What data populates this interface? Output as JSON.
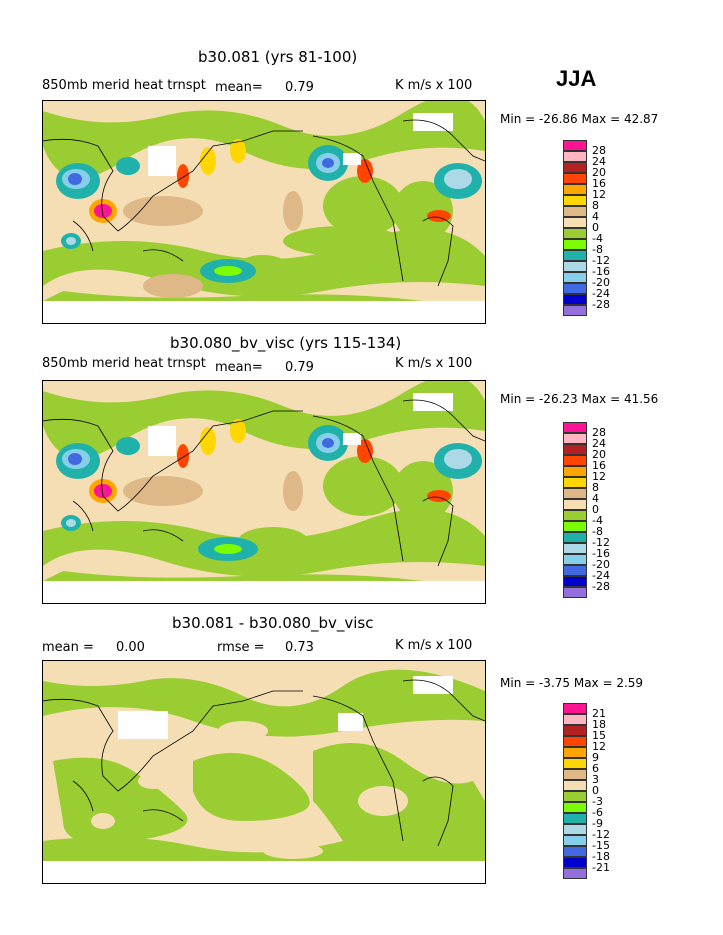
{
  "season": "JJA",
  "panels": [
    {
      "title": "b30.081 (yrs 81-100)",
      "variable": "850mb merid heat trnspt",
      "stat_label": "mean=",
      "stat_value": "0.79",
      "rmse_label": "",
      "rmse_value": "",
      "units": "K m/s x 100",
      "minmax": "Min = -26.86 Max =  42.87",
      "legend_labels": [
        "28",
        "24",
        "20",
        "16",
        "12",
        "8",
        "4",
        "0",
        "-4",
        "-8",
        "-12",
        "-16",
        "-20",
        "-24",
        "-28"
      ],
      "legend_colors": [
        "#ff1493",
        "#ffb6c1",
        "#b22222",
        "#ff4500",
        "#ffa500",
        "#ffd700",
        "#deb887",
        "#f5deb3",
        "#9acd32",
        "#7cfc00",
        "#20b2aa",
        "#add8e6",
        "#87ceeb",
        "#4169e1",
        "#0000cd",
        "#9370db"
      ]
    },
    {
      "title": "b30.080_bv_visc (yrs 115-134)",
      "variable": "850mb merid heat trnspt",
      "stat_label": "mean=",
      "stat_value": "0.79",
      "rmse_label": "",
      "rmse_value": "",
      "units": "K m/s x 100",
      "minmax": "Min = -26.23 Max =  41.56",
      "legend_labels": [
        "28",
        "24",
        "20",
        "16",
        "12",
        "8",
        "4",
        "0",
        "-4",
        "-8",
        "-12",
        "-16",
        "-20",
        "-24",
        "-28"
      ],
      "legend_colors": [
        "#ff1493",
        "#ffb6c1",
        "#b22222",
        "#ff4500",
        "#ffa500",
        "#ffd700",
        "#deb887",
        "#f5deb3",
        "#9acd32",
        "#7cfc00",
        "#20b2aa",
        "#add8e6",
        "#87ceeb",
        "#4169e1",
        "#0000cd",
        "#9370db"
      ]
    },
    {
      "title": "b30.081 - b30.080_bv_visc",
      "variable": "",
      "stat_label": "mean =",
      "stat_value": "0.00",
      "rmse_label": "rmse =",
      "rmse_value": "0.73",
      "units": "K m/s x 100",
      "minmax": "Min =  -3.75 Max =   2.59",
      "legend_labels": [
        "21",
        "18",
        "15",
        "12",
        "9",
        "6",
        "3",
        "0",
        "-3",
        "-6",
        "-9",
        "-12",
        "-15",
        "-18",
        "-21"
      ],
      "legend_colors": [
        "#ff1493",
        "#ffb6c1",
        "#b22222",
        "#ff4500",
        "#ffa500",
        "#ffd700",
        "#deb887",
        "#f5deb3",
        "#9acd32",
        "#7cfc00",
        "#20b2aa",
        "#add8e6",
        "#87ceeb",
        "#4169e1",
        "#0000cd",
        "#9370db"
      ]
    }
  ]
}
